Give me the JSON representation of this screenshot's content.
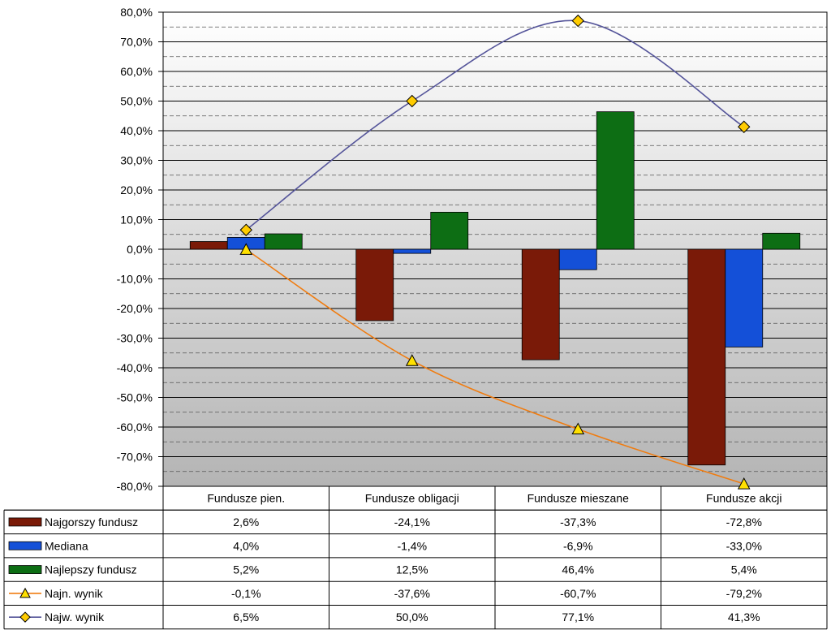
{
  "chart_data": {
    "type": "bar",
    "categories": [
      "Fundusze pien.",
      "Fundusze obligacji",
      "Fundusze mieszane",
      "Fundusze akcji"
    ],
    "series": [
      {
        "name": "Najgorszy fundusz",
        "kind": "bar",
        "color": "#7a1a08",
        "values": [
          2.6,
          -24.1,
          -37.3,
          -72.8
        ],
        "labels": [
          "2,6%",
          "-24,1%",
          "-37,3%",
          "-72,8%"
        ]
      },
      {
        "name": "Mediana",
        "kind": "bar",
        "color": "#1450d8",
        "values": [
          4.0,
          -1.4,
          -6.9,
          -33.0
        ],
        "labels": [
          "4,0%",
          "-1,4%",
          "-6,9%",
          "-33,0%"
        ]
      },
      {
        "name": "Najlepszy fundusz",
        "kind": "bar",
        "color": "#0d6e14",
        "values": [
          5.2,
          12.5,
          46.4,
          5.4
        ],
        "labels": [
          "5,2%",
          "12,5%",
          "46,4%",
          "5,4%"
        ]
      },
      {
        "name": "Najn. wynik",
        "kind": "line",
        "marker": "triangle",
        "color": "#f07c10",
        "marker_color": "#ffe000",
        "values": [
          -0.1,
          -37.6,
          -60.7,
          -79.2
        ],
        "labels": [
          "-0,1%",
          "-37,6%",
          "-60,7%",
          "-79,2%"
        ]
      },
      {
        "name": "Najw. wynik",
        "kind": "line",
        "marker": "diamond",
        "color": "#55559a",
        "marker_color": "#ffcc00",
        "values": [
          6.5,
          50.0,
          77.1,
          41.3
        ],
        "labels": [
          "6,5%",
          "50,0%",
          "77,1%",
          "41,3%"
        ]
      }
    ],
    "ylim": [
      -80,
      80
    ],
    "ytick_values": [
      80,
      70,
      60,
      50,
      40,
      30,
      20,
      10,
      0,
      -10,
      -20,
      -30,
      -40,
      -50,
      -60,
      -70,
      -80
    ],
    "ytick_labels": [
      "80,0%",
      "70,0%",
      "60,0%",
      "50,0%",
      "40,0%",
      "30,0%",
      "20,0%",
      "10,0%",
      "0,0%",
      "-10,0%",
      "-20,0%",
      "-30,0%",
      "-40,0%",
      "-50,0%",
      "-60,0%",
      "-70,0%",
      "-80,0%"
    ],
    "grid": true,
    "legend": "data-table"
  }
}
